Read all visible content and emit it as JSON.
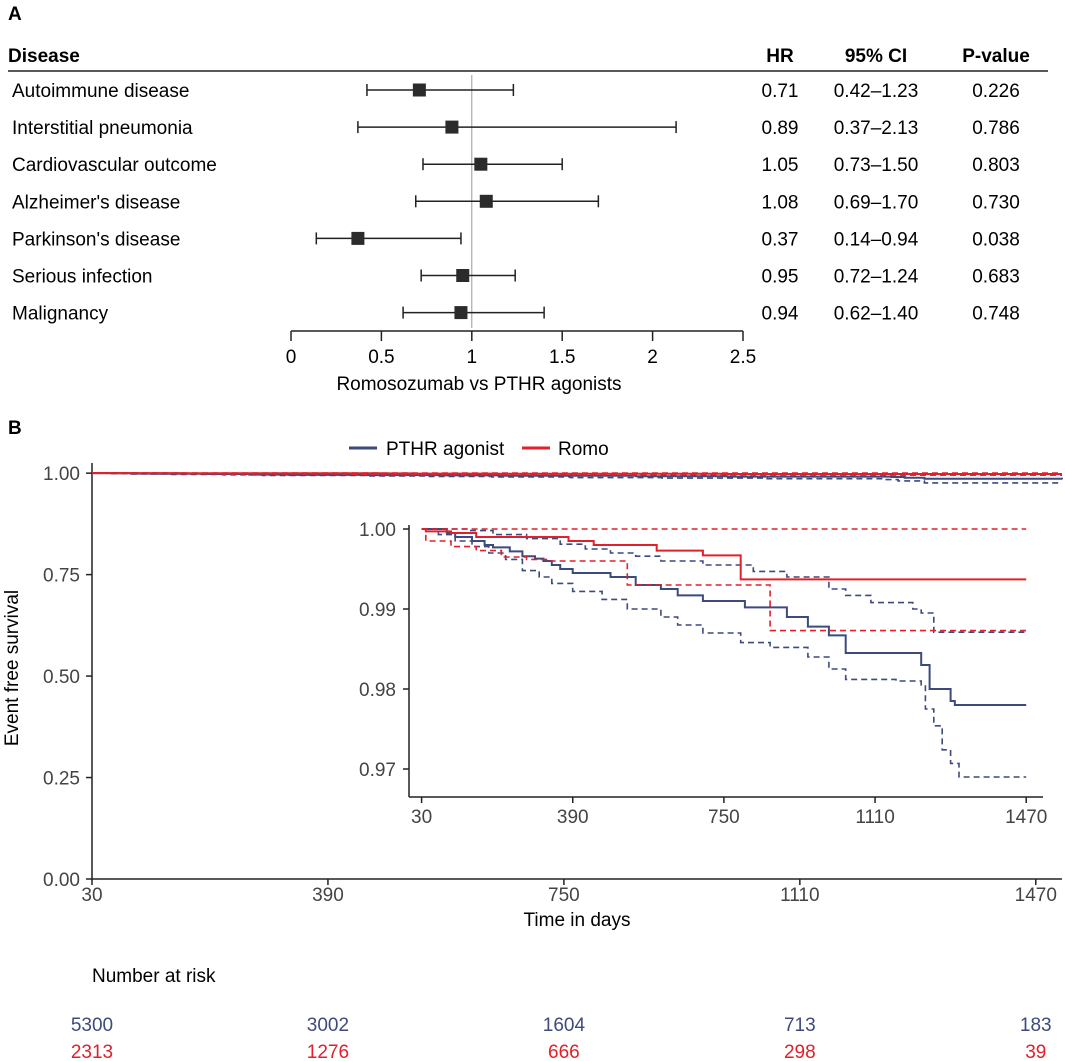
{
  "panel_a": {
    "label": "A",
    "headers": {
      "disease": "Disease",
      "hr": "HR",
      "ci": "95% CI",
      "p": "P-value"
    },
    "xlabel": "Romosozumab vs PTHR agonists",
    "ticks": [
      "0",
      "0.5",
      "1",
      "1.5",
      "2",
      "2.5"
    ]
  },
  "panel_b": {
    "label": "B",
    "ylabel": "Event free survival",
    "xlabel": "Time in days",
    "risk_title": "Number at risk"
  },
  "colors": {
    "pthr": "#3d4a7e",
    "romo": "#e0202a",
    "marker": "#2b2b2b"
  },
  "chart_data": [
    {
      "type": "forest",
      "title": "",
      "xlabel": "Romosozumab vs PTHR agonists",
      "xlim": [
        0,
        2.5
      ],
      "xticks": [
        0,
        0.5,
        1,
        1.5,
        2,
        2.5
      ],
      "reference_line": 1,
      "rows": [
        {
          "disease": "Autoimmune disease",
          "hr": 0.71,
          "lo": 0.42,
          "hi": 1.23,
          "hr_text": "0.71",
          "ci_text": "0.42–1.23",
          "p_text": "0.226"
        },
        {
          "disease": "Interstitial pneumonia",
          "hr": 0.89,
          "lo": 0.37,
          "hi": 2.13,
          "hr_text": "0.89",
          "ci_text": "0.37–2.13",
          "p_text": "0.786"
        },
        {
          "disease": "Cardiovascular outcome",
          "hr": 1.05,
          "lo": 0.73,
          "hi": 1.5,
          "hr_text": "1.05",
          "ci_text": "0.73–1.50",
          "p_text": "0.803"
        },
        {
          "disease": "Alzheimer's disease",
          "hr": 1.08,
          "lo": 0.69,
          "hi": 1.7,
          "hr_text": "1.08",
          "ci_text": "0.69–1.70",
          "p_text": "0.730"
        },
        {
          "disease": "Parkinson's disease",
          "hr": 0.37,
          "lo": 0.14,
          "hi": 0.94,
          "hr_text": "0.37",
          "ci_text": "0.14–0.94",
          "p_text": "0.038"
        },
        {
          "disease": "Serious infection",
          "hr": 0.95,
          "lo": 0.72,
          "hi": 1.24,
          "hr_text": "0.95",
          "ci_text": "0.72–1.24",
          "p_text": "0.683"
        },
        {
          "disease": "Malignancy",
          "hr": 0.94,
          "lo": 0.62,
          "hi": 1.4,
          "hr_text": "0.94",
          "ci_text": "0.62–1.40",
          "p_text": "0.748"
        }
      ]
    },
    {
      "type": "line",
      "subtype": "kaplan-meier",
      "xlabel": "Time in days",
      "ylabel": "Event free survival",
      "xlim": [
        30,
        1510
      ],
      "ylim": [
        0,
        1.025
      ],
      "xticks": [
        30,
        390,
        750,
        1110,
        1470
      ],
      "yticks": [
        0,
        0.25,
        0.5,
        0.75,
        1.0
      ],
      "ytick_labels": [
        "0.00",
        "0.25",
        "0.50",
        "0.75",
        "1.00"
      ],
      "legend": [
        "PTHR agonist",
        "Romo"
      ],
      "legend_position": "top",
      "inset": {
        "xlim": [
          0,
          1510
        ],
        "ylim": [
          0.9665,
          1.0005
        ],
        "xticks": [
          30,
          390,
          750,
          1110,
          1470
        ],
        "yticks": [
          0.97,
          0.98,
          0.99,
          1.0
        ],
        "ytick_labels": [
          "0.97",
          "0.98",
          "0.99",
          "1.00"
        ]
      },
      "series": [
        {
          "name": "PTHR agonist",
          "color": "#3d4a7e",
          "style": "solid",
          "x": [
            30,
            60,
            90,
            120,
            200,
            270,
            330,
            450,
            560,
            650,
            860,
            1000,
            1250,
            1270,
            1300,
            1510
          ],
          "y": [
            1.0,
            0.9995,
            0.999,
            0.9985,
            0.998,
            0.9965,
            0.9958,
            0.9953,
            0.9945,
            0.9935,
            0.9925,
            0.9915,
            0.9904,
            0.9885,
            0.9862,
            0.9845
          ]
        },
        {
          "name": "PTHR agonist lower CI",
          "color": "#3d4a7e",
          "style": "dashed",
          "x": [
            30,
            60,
            90,
            150,
            230,
            290,
            450,
            540,
            640,
            760,
            900,
            1060,
            1240,
            1260,
            1300,
            1510
          ],
          "y": [
            1.0,
            0.999,
            0.998,
            0.997,
            0.996,
            0.9945,
            0.9932,
            0.9918,
            0.9905,
            0.989,
            0.9877,
            0.9862,
            0.984,
            0.981,
            0.976,
            0.9755
          ]
        },
        {
          "name": "PTHR agonist upper CI",
          "color": "#3d4a7e",
          "style": "dashed",
          "x": [
            30,
            80,
            150,
            250,
            350,
            450,
            550,
            650,
            800,
            1000,
            1220,
            1260,
            1510
          ],
          "y": [
            1.0,
            1.0,
            0.9997,
            0.9994,
            0.9987,
            0.998,
            0.9977,
            0.9973,
            0.9968,
            0.9962,
            0.9958,
            0.9952,
            0.9952
          ]
        },
        {
          "name": "Romo",
          "color": "#e0202a",
          "style": "solid",
          "x": [
            30,
            100,
            170,
            230,
            440,
            470,
            520,
            640,
            760,
            1000,
            1510
          ],
          "y": [
            1.0,
            1.0,
            0.9998,
            0.9997,
            0.9995,
            0.9993,
            0.999,
            0.9987,
            0.9985,
            0.9978,
            0.9978
          ]
        },
        {
          "name": "Romo lower CI",
          "color": "#e0202a",
          "style": "dashed",
          "x": [
            30,
            100,
            160,
            230,
            420,
            470,
            520,
            650,
            1000,
            1510
          ],
          "y": [
            1.0,
            0.9992,
            0.9987,
            0.9982,
            0.9975,
            0.997,
            0.9965,
            0.9962,
            0.9955,
            0.9955
          ]
        },
        {
          "name": "Romo upper CI",
          "color": "#e0202a",
          "style": "dashed",
          "x": [
            30,
            1510
          ],
          "y": [
            1.0,
            1.0
          ]
        }
      ],
      "inset_series": [
        {
          "name": "PTHR agonist",
          "color": "#3d4a7e",
          "style": "solid",
          "x": [
            30,
            90,
            110,
            150,
            180,
            200,
            240,
            270,
            300,
            320,
            340,
            360,
            390,
            480,
            540,
            600,
            640,
            700,
            800,
            900,
            950,
            1000,
            1040,
            1160,
            1220,
            1240,
            1270,
            1290,
            1300,
            1420,
            1470
          ],
          "y": [
            1.0,
            0.9995,
            0.999,
            0.9985,
            0.998,
            0.9977,
            0.9972,
            0.9966,
            0.9963,
            0.996,
            0.9955,
            0.995,
            0.9945,
            0.994,
            0.993,
            0.9925,
            0.9917,
            0.991,
            0.9902,
            0.989,
            0.9878,
            0.9867,
            0.9845,
            0.9845,
            0.983,
            0.98,
            0.98,
            0.9785,
            0.978,
            0.978,
            0.978
          ]
        },
        {
          "name": "PTHR agonist lower CI",
          "color": "#3d4a7e",
          "style": "dashed",
          "x": [
            30,
            70,
            110,
            150,
            190,
            230,
            270,
            310,
            340,
            390,
            460,
            520,
            600,
            640,
            700,
            790,
            860,
            950,
            1000,
            1040,
            1160,
            1220,
            1230,
            1250,
            1270,
            1290,
            1310,
            1470
          ],
          "y": [
            1.0,
            0.9993,
            0.9985,
            0.9978,
            0.997,
            0.9962,
            0.9948,
            0.994,
            0.9932,
            0.9922,
            0.9912,
            0.99,
            0.989,
            0.988,
            0.987,
            0.9858,
            0.9852,
            0.984,
            0.9825,
            0.9812,
            0.981,
            0.9805,
            0.9775,
            0.9754,
            0.9724,
            0.9707,
            0.969,
            0.969
          ]
        },
        {
          "name": "PTHR agonist upper CI",
          "color": "#3d4a7e",
          "style": "dashed",
          "x": [
            30,
            80,
            140,
            200,
            280,
            360,
            420,
            480,
            540,
            600,
            700,
            820,
            900,
            1000,
            1040,
            1100,
            1200,
            1220,
            1250,
            1470
          ],
          "y": [
            1.0,
            1.0,
            0.9998,
            0.9993,
            0.9988,
            0.9981,
            0.9975,
            0.997,
            0.9966,
            0.996,
            0.9955,
            0.9947,
            0.994,
            0.9925,
            0.9917,
            0.9908,
            0.99,
            0.9895,
            0.9871,
            0.9871
          ]
        },
        {
          "name": "Romo",
          "color": "#e0202a",
          "style": "solid",
          "x": [
            30,
            40,
            100,
            160,
            280,
            380,
            440,
            520,
            590,
            700,
            780,
            790,
            1470
          ],
          "y": [
            1.0,
            0.9997,
            0.9995,
            0.999,
            0.999,
            0.9985,
            0.998,
            0.998,
            0.9973,
            0.9967,
            0.9967,
            0.9937,
            0.9937
          ]
        },
        {
          "name": "Romo lower CI",
          "color": "#e0202a",
          "style": "dashed",
          "x": [
            30,
            40,
            100,
            160,
            220,
            280,
            330,
            520,
            800,
            860,
            1470
          ],
          "y": [
            1.0,
            0.9985,
            0.9978,
            0.9973,
            0.9965,
            0.9962,
            0.996,
            0.993,
            0.993,
            0.9873,
            0.9871
          ]
        },
        {
          "name": "Romo upper CI",
          "color": "#e0202a",
          "style": "dashed",
          "x": [
            30,
            1470
          ],
          "y": [
            1.0,
            1.0
          ]
        }
      ],
      "risk_table": {
        "title": "Number at risk",
        "times": [
          30,
          390,
          750,
          1110,
          1470
        ],
        "rows": [
          {
            "name": "PTHR agonist",
            "color": "#3d4a7e",
            "values": [
              "5300",
              "3002",
              "1604",
              "713",
              "183"
            ]
          },
          {
            "name": "Romo",
            "color": "#e0202a",
            "values": [
              "2313",
              "1276",
              "666",
              "298",
              "39"
            ]
          }
        ]
      }
    }
  ]
}
